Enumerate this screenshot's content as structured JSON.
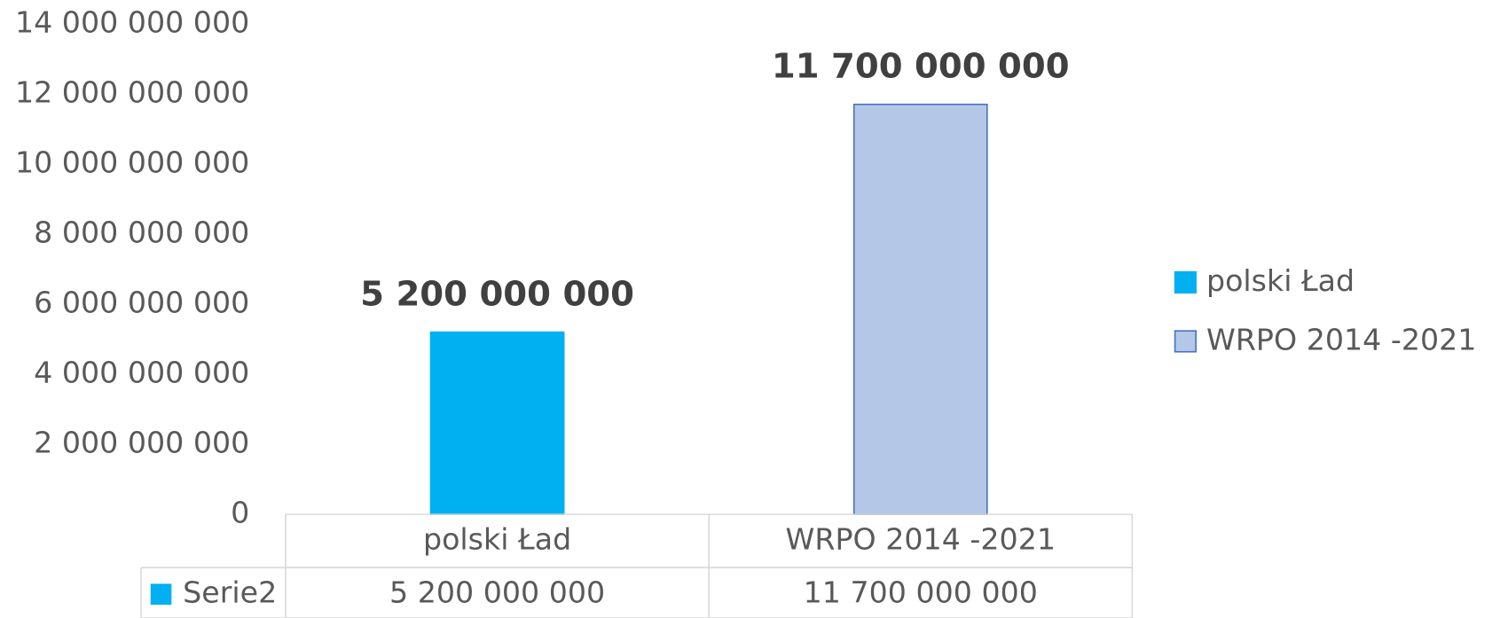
{
  "chart_data": {
    "type": "bar",
    "categories": [
      "polski Ład",
      "WRPO 2014 -2021"
    ],
    "series": [
      {
        "name": "Serie2",
        "color": "#00b0f0",
        "point_colors": [
          "#00b0f0",
          "#b4c7e7"
        ],
        "values": [
          5200000000,
          11700000000
        ],
        "value_labels": [
          "5 200 000 000",
          "11 700 000 000"
        ]
      }
    ],
    "ylim": [
      0,
      14000000000
    ],
    "yticks": [
      0,
      {
        "value": 2000000000,
        "label": "2 000 000 000"
      },
      {
        "value": 4000000000,
        "label": "4 000 000 000"
      },
      {
        "value": 6000000000,
        "label": "6 000 000 000"
      },
      {
        "value": 8000000000,
        "label": "8 000 000 000"
      },
      {
        "value": 10000000000,
        "label": "10 000 000 000"
      },
      {
        "value": 12000000000,
        "label": "12 000 000 000"
      },
      {
        "value": 14000000000,
        "label": "14 000 000 000"
      }
    ],
    "grid": false,
    "legend": "right",
    "data_table": true
  }
}
